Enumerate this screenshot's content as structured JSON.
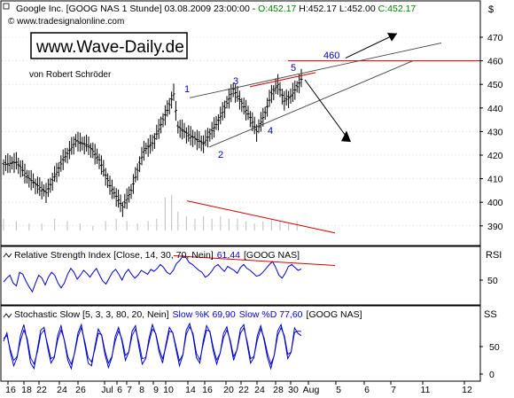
{
  "header": {
    "symbol_line": "Google Inc. [GOOG NAS  1 Stunde] 03.08.2009 23:00:00 - ",
    "open": "O:452.17",
    "high": " H:452.17",
    "low": " L:452.00",
    "close": " C:452.17",
    "site": "© www.tradesignalonline.com"
  },
  "watermark": {
    "title": "www.Wave-Daily.de",
    "author": "von Robert Schröder"
  },
  "currency_label": "$",
  "colors": {
    "background": "#ffffff",
    "price_bars": "#000000",
    "series_blue": "#0000cc",
    "line_red": "#d00000",
    "grid_gray": "#cccccc",
    "volume": "#c8c8c8",
    "header_green": "#008000"
  },
  "chart_data": [
    {
      "type": "bar",
      "title": "Google Inc. [GOOG NAS 1 Stunde]",
      "ylim": [
        386,
        478
      ],
      "yticks": [
        "470",
        "460",
        "450",
        "440",
        "430",
        "420",
        "410",
        "400",
        "390"
      ],
      "x_ticks": [
        "16",
        "18",
        "22",
        "24",
        "26",
        "Jul",
        "6",
        "7",
        "8",
        "9",
        "10",
        "14",
        "16",
        "20",
        "22",
        "24",
        "28",
        "30",
        "Aug",
        "5",
        "6",
        "7",
        "11",
        "12"
      ],
      "last_close": 452.17,
      "price_path_anchor_closes": [
        [
          0,
          416
        ],
        [
          6,
          417
        ],
        [
          12,
          410
        ],
        [
          20,
          404
        ],
        [
          28,
          418
        ],
        [
          34,
          426
        ],
        [
          40,
          424
        ],
        [
          45,
          418
        ],
        [
          50,
          407
        ],
        [
          56,
          398
        ],
        [
          60,
          405
        ],
        [
          66,
          422
        ],
        [
          70,
          425
        ],
        [
          73,
          431
        ],
        [
          77,
          439
        ],
        [
          80,
          446
        ],
        [
          82,
          432
        ],
        [
          88,
          428
        ],
        [
          94,
          425
        ],
        [
          100,
          433
        ],
        [
          104,
          440
        ],
        [
          108,
          448
        ],
        [
          112,
          442
        ],
        [
          116,
          436
        ],
        [
          119,
          430
        ],
        [
          123,
          438
        ],
        [
          126,
          446
        ],
        [
          129,
          450
        ],
        [
          132,
          443
        ],
        [
          135,
          445
        ],
        [
          138,
          449
        ],
        [
          140,
          452.17
        ]
      ],
      "volume": [
        [
          0,
          393
        ],
        [
          6,
          392
        ],
        [
          12,
          391
        ],
        [
          18,
          391
        ],
        [
          24,
          393
        ],
        [
          30,
          392
        ],
        [
          36,
          391
        ],
        [
          42,
          390
        ],
        [
          48,
          392
        ],
        [
          53,
          393
        ],
        [
          58,
          392
        ],
        [
          63,
          391
        ],
        [
          68,
          392
        ],
        [
          72,
          393
        ],
        [
          76,
          402
        ],
        [
          79,
          403
        ],
        [
          82,
          396
        ],
        [
          86,
          394
        ],
        [
          90,
          393
        ],
        [
          94,
          394
        ],
        [
          98,
          393
        ],
        [
          102,
          394
        ],
        [
          106,
          393
        ],
        [
          110,
          393
        ],
        [
          114,
          392
        ],
        [
          118,
          391
        ],
        [
          122,
          392
        ],
        [
          126,
          393
        ],
        [
          130,
          392
        ],
        [
          134,
          391
        ],
        [
          138,
          392
        ]
      ],
      "annotations": {
        "level_label": "460",
        "wave_labels": [
          "1",
          "2",
          "3",
          "4",
          "5"
        ],
        "level_value": 460
      }
    },
    {
      "type": "line",
      "title": "Relative Strength Index [Close, 14, 30, 70, Nein]",
      "value_label": "61,44",
      "symbol": "[GOOG NAS]",
      "side_label": "RSI",
      "yticks": [
        "50"
      ],
      "ylim": [
        30,
        80
      ],
      "values": [
        48,
        52,
        55,
        47,
        44,
        58,
        56,
        49,
        43,
        38,
        47,
        55,
        52,
        45,
        53,
        58,
        55,
        47,
        42,
        47,
        56,
        62,
        58,
        51,
        55,
        60,
        57,
        53,
        58,
        62,
        55,
        49,
        46,
        52,
        58,
        61,
        56,
        50,
        57,
        61,
        56,
        52,
        55,
        60,
        58,
        56,
        61,
        59,
        62,
        66,
        63,
        58,
        56,
        60,
        67,
        70,
        75,
        73,
        68,
        66,
        63,
        60,
        58,
        53,
        55,
        59,
        64,
        66,
        62,
        59,
        64,
        62,
        60,
        57,
        63,
        66,
        62,
        60,
        57,
        54,
        55,
        58,
        62,
        66,
        69,
        63,
        55,
        52,
        57,
        64,
        66,
        63,
        60,
        61.44
      ]
    },
    {
      "type": "line",
      "title": "Stochastic Slow [5, 3, 3, 80, 20, Nein]",
      "labels": [
        "Slow %K 69,90",
        "Slow %D 77,60"
      ],
      "symbol": "[GOOG NAS]",
      "side_label": "SS",
      "yticks": [
        "50",
        "0"
      ],
      "ylim": [
        -5,
        100
      ],
      "values_k": [
        60,
        75,
        40,
        15,
        30,
        70,
        90,
        60,
        20,
        10,
        45,
        80,
        85,
        50,
        20,
        30,
        70,
        88,
        60,
        25,
        10,
        40,
        75,
        90,
        55,
        20,
        15,
        50,
        82,
        70,
        35,
        12,
        30,
        68,
        85,
        60,
        25,
        40,
        78,
        88,
        50,
        18,
        28,
        65,
        90,
        72,
        40,
        20,
        55,
        85,
        75,
        45,
        15,
        35,
        80,
        92,
        70,
        30,
        20,
        60,
        88,
        76,
        42,
        18,
        38,
        74,
        86,
        58,
        25,
        45,
        82,
        90,
        55,
        20,
        30,
        70,
        88,
        62,
        30,
        10,
        35,
        78,
        90,
        66,
        28,
        40,
        84,
        74,
        69.9
      ],
      "values_d": [
        65,
        70,
        45,
        25,
        32,
        60,
        80,
        65,
        30,
        18,
        40,
        72,
        80,
        55,
        28,
        32,
        62,
        80,
        62,
        32,
        18,
        38,
        68,
        84,
        60,
        30,
        22,
        45,
        74,
        72,
        42,
        20,
        32,
        60,
        78,
        64,
        34,
        40,
        70,
        82,
        58,
        28,
        30,
        58,
        82,
        74,
        46,
        28,
        50,
        78,
        76,
        50,
        24,
        36,
        72,
        86,
        74,
        38,
        26,
        54,
        80,
        78,
        48,
        26,
        38,
        66,
        80,
        62,
        32,
        44,
        74,
        84,
        60,
        28,
        32,
        62,
        82,
        66,
        38,
        18,
        34,
        70,
        84,
        70,
        36,
        40,
        76,
        78,
        77.6
      ]
    }
  ]
}
